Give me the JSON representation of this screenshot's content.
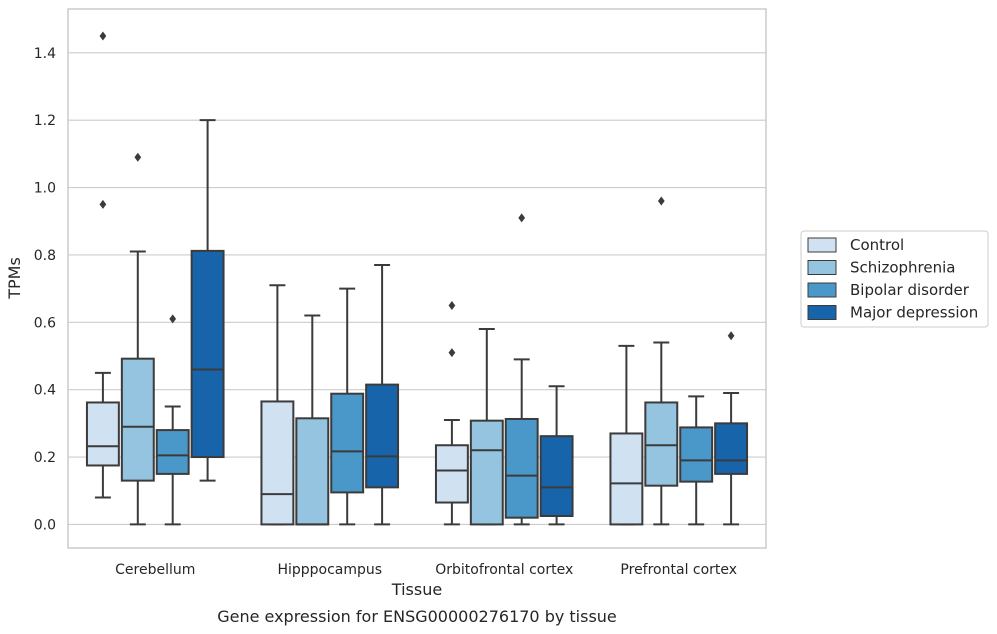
{
  "caption": "Gene expression for ENSG00000276170 by tissue",
  "chart_data": {
    "type": "box",
    "xlabel": "Tissue",
    "ylabel": "TPMs",
    "ylim": [
      -0.07,
      1.53
    ],
    "yticks": [
      "0.0",
      "0.2",
      "0.4",
      "0.6",
      "0.8",
      "1.0",
      "1.2",
      "1.4"
    ],
    "grid": true,
    "legend_position": "right",
    "categories": [
      "Cerebellum",
      "Hipppocampus",
      "Orbitofrontal cortex",
      "Prefrontal cortex"
    ],
    "series": [
      {
        "name": "Control",
        "color": "#d0e1f2",
        "boxes": [
          {
            "whislo": 0.08,
            "q1": 0.175,
            "med": 0.232,
            "q3": 0.362,
            "whishi": 0.45,
            "fliers": [
              0.95,
              1.45
            ]
          },
          {
            "whislo": 0.0,
            "q1": 0.0,
            "med": 0.09,
            "q3": 0.365,
            "whishi": 0.71,
            "fliers": []
          },
          {
            "whislo": 0.0,
            "q1": 0.065,
            "med": 0.16,
            "q3": 0.235,
            "whishi": 0.31,
            "fliers": [
              0.51,
              0.65
            ]
          },
          {
            "whislo": 0.0,
            "q1": 0.0,
            "med": 0.122,
            "q3": 0.27,
            "whishi": 0.53,
            "fliers": []
          }
        ]
      },
      {
        "name": "Schizophrenia",
        "color": "#94c4df",
        "boxes": [
          {
            "whislo": 0.0,
            "q1": 0.13,
            "med": 0.29,
            "q3": 0.492,
            "whishi": 0.81,
            "fliers": [
              1.09
            ]
          },
          {
            "whislo": 0.0,
            "q1": 0.0,
            "med": 0.0,
            "q3": 0.315,
            "whishi": 0.62,
            "fliers": []
          },
          {
            "whislo": 0.0,
            "q1": 0.0,
            "med": 0.22,
            "q3": 0.308,
            "whishi": 0.58,
            "fliers": []
          },
          {
            "whislo": 0.0,
            "q1": 0.115,
            "med": 0.235,
            "q3": 0.362,
            "whishi": 0.54,
            "fliers": [
              0.96
            ]
          }
        ]
      },
      {
        "name": "Bipolar disorder",
        "color": "#4a98c9",
        "boxes": [
          {
            "whislo": 0.0,
            "q1": 0.15,
            "med": 0.205,
            "q3": 0.28,
            "whishi": 0.35,
            "fliers": [
              0.61
            ]
          },
          {
            "whislo": 0.0,
            "q1": 0.095,
            "med": 0.217,
            "q3": 0.388,
            "whishi": 0.7,
            "fliers": []
          },
          {
            "whislo": 0.0,
            "q1": 0.02,
            "med": 0.145,
            "q3": 0.313,
            "whishi": 0.49,
            "fliers": [
              0.91
            ]
          },
          {
            "whislo": 0.0,
            "q1": 0.127,
            "med": 0.19,
            "q3": 0.288,
            "whishi": 0.38,
            "fliers": []
          }
        ]
      },
      {
        "name": "Major depression",
        "color": "#1764ab",
        "boxes": [
          {
            "whislo": 0.13,
            "q1": 0.2,
            "med": 0.46,
            "q3": 0.812,
            "whishi": 1.2,
            "fliers": []
          },
          {
            "whislo": 0.0,
            "q1": 0.11,
            "med": 0.202,
            "q3": 0.415,
            "whishi": 0.77,
            "fliers": []
          },
          {
            "whislo": 0.0,
            "q1": 0.025,
            "med": 0.11,
            "q3": 0.262,
            "whishi": 0.41,
            "fliers": []
          },
          {
            "whislo": 0.0,
            "q1": 0.15,
            "med": 0.19,
            "q3": 0.3,
            "whishi": 0.39,
            "fliers": [
              0.56
            ]
          }
        ]
      }
    ]
  }
}
